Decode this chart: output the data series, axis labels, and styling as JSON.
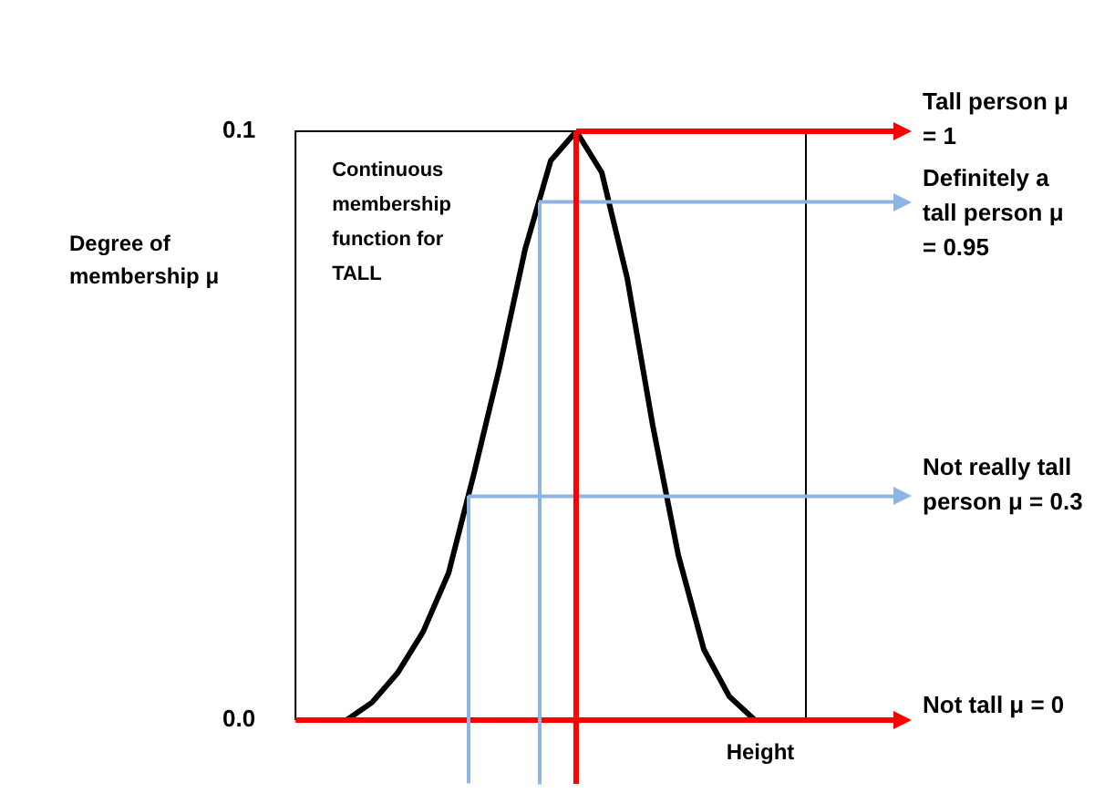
{
  "chart_data": {
    "type": "line",
    "xlabel": "Height",
    "ylabel": "Degree of membership μ",
    "categories": [
      null,
      null,
      null,
      null,
      null,
      null,
      null,
      null,
      null,
      null,
      null,
      null,
      null,
      null,
      null,
      null,
      null,
      null,
      null,
      null,
      null
    ],
    "series": [
      {
        "color": "#000000",
        "values": [
          0,
          0,
          0,
          0.003,
          0.008,
          0.015,
          0.025,
          0.042,
          0.06,
          0.08,
          0.095,
          0.1,
          0.093,
          0.075,
          0.05,
          0.028,
          0.012,
          0.004,
          0,
          0,
          0
        ]
      }
    ],
    "ylim": [
      0,
      0.1
    ],
    "yticks": [
      {
        "value": 0,
        "label": "0.0"
      },
      {
        "value": 0.1,
        "label": "0.1"
      }
    ],
    "tick_labels": "y",
    "legend": false,
    "marker": "none",
    "line_style": "solid",
    "ref_lines": [
      {
        "axis": "y",
        "value": 0.1,
        "color": "#ff0000"
      },
      {
        "axis": "y",
        "value": 0.088,
        "color": "#8db4e2"
      },
      {
        "axis": "y",
        "value": 0.038,
        "color": "#8db4e2"
      },
      {
        "axis": "y",
        "value": 0,
        "color": "#ff0000"
      }
    ],
    "annotations": [
      "Continuous membership function for TALL",
      "Tall person μ = 1",
      "Definitely a tall person μ = 0.95",
      "Not really tall person μ = 0.3",
      "Not tall μ = 0"
    ]
  }
}
